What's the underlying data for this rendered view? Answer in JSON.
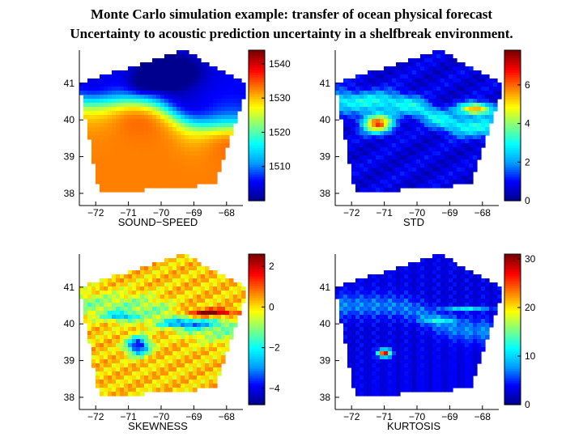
{
  "title_lines": [
    "Monte Carlo simulation example: transfer of ocean physical forecast",
    "Uncertainty to acoustic prediction uncertainty in a shelfbreak environment."
  ],
  "colormap": [
    "#00008f",
    "#0000ff",
    "#00a0ff",
    "#00ffff",
    "#80ff80",
    "#ffff00",
    "#ff8000",
    "#ff0000",
    "#800000"
  ],
  "chart_data": [
    {
      "type": "heatmap",
      "xlabel": "SOUND−SPEED",
      "xticks": [
        -72,
        -71,
        -70,
        -69,
        -68
      ],
      "xtick_labels": [
        "−72",
        "−71",
        "−70",
        "−69",
        "−68"
      ],
      "yticks": [
        38,
        39,
        40,
        41
      ],
      "ytick_labels": [
        "38",
        "39",
        "40",
        "41"
      ],
      "xlim": [
        -72.5,
        -67.5
      ],
      "ylim": [
        37.8,
        41.9
      ],
      "colorbar": {
        "range": [
          1500,
          1544
        ],
        "ticks": [
          1510,
          1520,
          1530,
          1540
        ],
        "tick_labels": [
          "1510",
          "1520",
          "1530",
          "1540"
        ]
      },
      "field": "sound_speed"
    },
    {
      "type": "heatmap",
      "xlabel": "STD",
      "xticks": [
        -72,
        -71,
        -70,
        -69,
        -68
      ],
      "xtick_labels": [
        "−72",
        "−71",
        "−70",
        "−69",
        "−68"
      ],
      "yticks": [
        38,
        39,
        40,
        41
      ],
      "ytick_labels": [
        "38",
        "39",
        "40",
        "41"
      ],
      "xlim": [
        -72.5,
        -67.5
      ],
      "ylim": [
        37.8,
        41.9
      ],
      "colorbar": {
        "range": [
          0,
          7.8
        ],
        "ticks": [
          0,
          2,
          4,
          6
        ],
        "tick_labels": [
          "0",
          "2",
          "4",
          "6"
        ]
      },
      "field": "std"
    },
    {
      "type": "heatmap",
      "xlabel": "SKEWNESS",
      "xticks": [
        -72,
        -71,
        -70,
        -69,
        -68
      ],
      "xtick_labels": [
        "−72",
        "−71",
        "−70",
        "−69",
        "−68"
      ],
      "yticks": [
        38,
        39,
        40,
        41
      ],
      "ytick_labels": [
        "38",
        "39",
        "40",
        "41"
      ],
      "xlim": [
        -72.5,
        -67.5
      ],
      "ylim": [
        37.8,
        41.9
      ],
      "colorbar": {
        "range": [
          -4.8,
          2.6
        ],
        "ticks": [
          -4,
          -2,
          0,
          2
        ],
        "tick_labels": [
          "−4",
          "−2",
          "0",
          "2"
        ]
      },
      "field": "skewness"
    },
    {
      "type": "heatmap",
      "xlabel": "KURTOSIS",
      "xticks": [
        -72,
        -71,
        -70,
        -69,
        -68
      ],
      "xtick_labels": [
        "−72",
        "−71",
        "−70",
        "−69",
        "−68"
      ],
      "yticks": [
        38,
        39,
        40,
        41
      ],
      "ytick_labels": [
        "38",
        "39",
        "40",
        "41"
      ],
      "xlim": [
        -72.5,
        -67.5
      ],
      "ylim": [
        37.8,
        41.9
      ],
      "colorbar": {
        "range": [
          0,
          31
        ],
        "ticks": [
          0,
          10,
          20,
          30
        ],
        "tick_labels": [
          "0",
          "10",
          "20",
          "30"
        ]
      },
      "field": "kurtosis"
    }
  ]
}
